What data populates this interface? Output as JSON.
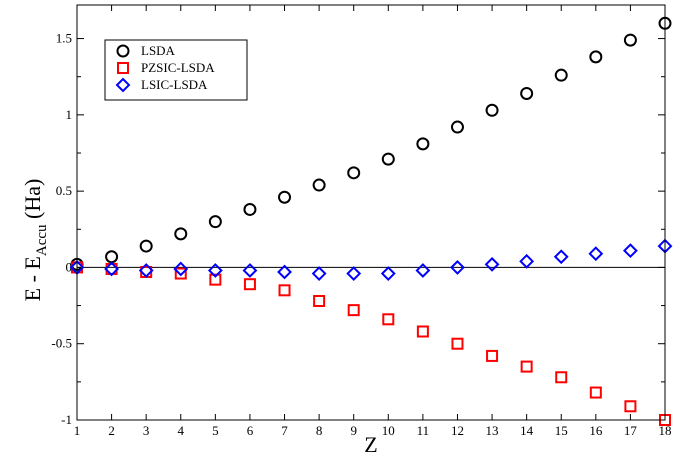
{
  "chart_data": {
    "type": "scatter",
    "title": "",
    "xlabel": "Z",
    "ylabel": {
      "prefix": "E - E",
      "subscript": "Accu",
      "suffix": " (Ha)"
    },
    "xlim": [
      1,
      18
    ],
    "ylim": [
      -1.0,
      1.72
    ],
    "xticks": [
      1,
      2,
      3,
      4,
      5,
      6,
      7,
      8,
      9,
      10,
      11,
      12,
      13,
      14,
      15,
      16,
      17,
      18
    ],
    "yticks": [
      -1,
      -0.5,
      0,
      0.5,
      1,
      1.5
    ],
    "ytick_labels": [
      "-1",
      "-0.5",
      "0",
      "0.5",
      "1",
      "1.5"
    ],
    "zero_line": true,
    "grid": false,
    "legend_position": "top-left",
    "series": [
      {
        "name": "LSDA",
        "marker": "circle",
        "color": "#000000",
        "x": [
          1,
          2,
          3,
          4,
          5,
          6,
          7,
          8,
          9,
          10,
          11,
          12,
          13,
          14,
          15,
          16,
          17,
          18
        ],
        "y": [
          0.02,
          0.07,
          0.14,
          0.22,
          0.3,
          0.38,
          0.46,
          0.54,
          0.62,
          0.71,
          0.81,
          0.92,
          1.03,
          1.14,
          1.26,
          1.38,
          1.49,
          1.6
        ]
      },
      {
        "name": "PZSIC-LSDA",
        "marker": "square",
        "color": "#ff0000",
        "x": [
          1,
          2,
          3,
          4,
          5,
          6,
          7,
          8,
          9,
          10,
          11,
          12,
          13,
          14,
          15,
          16,
          17,
          18
        ],
        "y": [
          0.0,
          -0.01,
          -0.03,
          -0.04,
          -0.08,
          -0.11,
          -0.15,
          -0.22,
          -0.28,
          -0.34,
          -0.42,
          -0.5,
          -0.58,
          -0.65,
          -0.72,
          -0.82,
          -0.91,
          -1.0
        ]
      },
      {
        "name": "LSIC-LSDA",
        "marker": "diamond",
        "color": "#0000ff",
        "x": [
          1,
          2,
          3,
          4,
          5,
          6,
          7,
          8,
          9,
          10,
          11,
          12,
          13,
          14,
          15,
          16,
          17,
          18
        ],
        "y": [
          0.0,
          -0.01,
          -0.02,
          -0.01,
          -0.02,
          -0.02,
          -0.03,
          -0.04,
          -0.04,
          -0.04,
          -0.02,
          0.0,
          0.02,
          0.04,
          0.07,
          0.09,
          0.11,
          0.14
        ]
      }
    ]
  }
}
